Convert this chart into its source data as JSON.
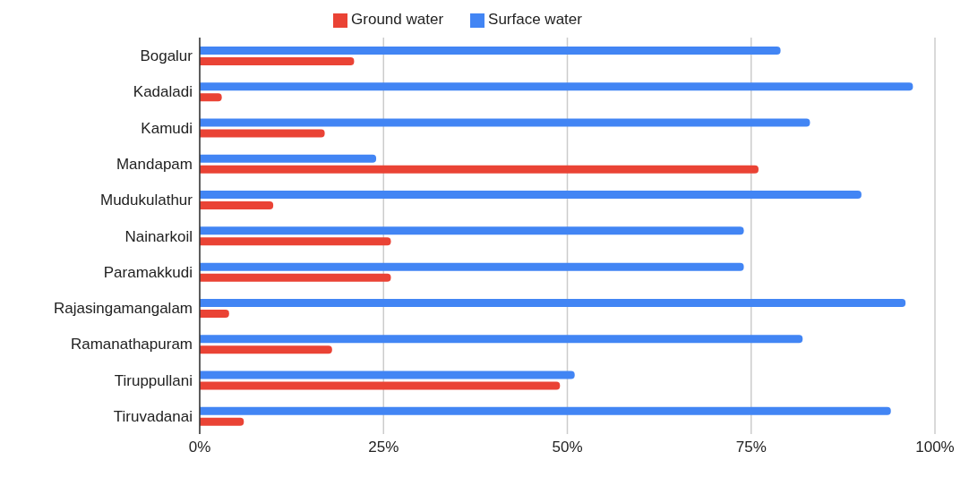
{
  "chart_data": {
    "type": "bar",
    "orientation": "horizontal",
    "categories": [
      "Bogalur",
      "Kadaladi",
      "Kamudi",
      "Mandapam",
      "Mudukulathur",
      "Nainarkoil",
      "Paramakkudi",
      "Rajasingamangalam",
      "Ramanathapuram",
      "Tiruppullani",
      "Tiruvadanai"
    ],
    "series": [
      {
        "name": "Surface water",
        "color": "#4285f4",
        "values": [
          79,
          97,
          83,
          24,
          90,
          74,
          74,
          96,
          82,
          51,
          94
        ]
      },
      {
        "name": "Ground water",
        "color": "#ea4335",
        "values": [
          21,
          3,
          17,
          76,
          10,
          26,
          26,
          4,
          18,
          49,
          6
        ]
      }
    ],
    "xlim": [
      0,
      100
    ],
    "xticks": [
      {
        "value": 0,
        "label": "0%"
      },
      {
        "value": 25,
        "label": "25%"
      },
      {
        "value": 50,
        "label": "50%"
      },
      {
        "value": 75,
        "label": "75%"
      },
      {
        "value": 100,
        "label": "100%"
      }
    ],
    "grid": "x",
    "legend": "top"
  }
}
